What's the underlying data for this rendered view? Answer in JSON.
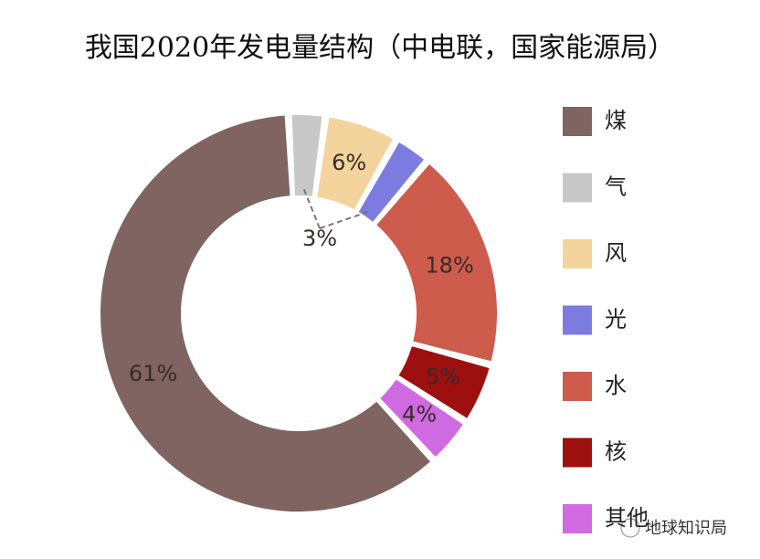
{
  "chart_data": {
    "type": "pie",
    "title": "我国2020年发电量结构（中电联，国家能源局）",
    "categories": [
      "煤",
      "气",
      "风",
      "光",
      "水",
      "核",
      "其他"
    ],
    "values": [
      61,
      3,
      6,
      3,
      18,
      5,
      4
    ],
    "value_labels": [
      "61%",
      "3%",
      "6%",
      null,
      "18%",
      "5%",
      "4%"
    ],
    "colors": [
      "#7f6462",
      "#c8c8c8",
      "#f3d49d",
      "#7b7be0",
      "#cd5c4c",
      "#9e0f10",
      "#cf6ae0"
    ],
    "watermark": "地球知识局"
  }
}
